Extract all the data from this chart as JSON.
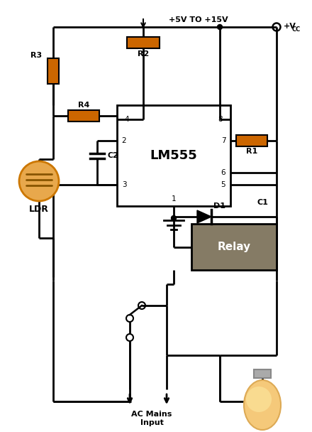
{
  "bg_color": "#ffffff",
  "wire_color": "#000000",
  "resistor_color": "#cc6600",
  "relay_color": "#7a7055",
  "supply_label": "+5V TO +15V",
  "ac_label": "AC Mains\nInput",
  "lm555_label": "LM555",
  "relay_label": "Relay",
  "vcc_label": "+V",
  "vcc_sub": "CC"
}
